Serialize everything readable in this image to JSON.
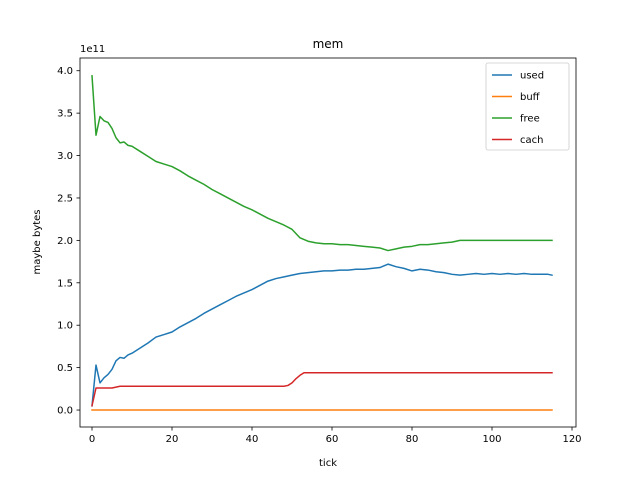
{
  "chart_data": {
    "type": "line",
    "title": "mem",
    "xlabel": "tick",
    "ylabel": "maybe bytes",
    "offset_label": "1e11",
    "xlim": [
      -3,
      121
    ],
    "ylim": [
      -0.2,
      4.15
    ],
    "xticks": [
      0,
      20,
      40,
      60,
      80,
      100,
      120
    ],
    "yticks": [
      0.0,
      0.5,
      1.0,
      1.5,
      2.0,
      2.5,
      3.0,
      3.5,
      4.0
    ],
    "xtick_labels": [
      "0",
      "20",
      "40",
      "60",
      "80",
      "100",
      "120"
    ],
    "ytick_labels": [
      "0.0",
      "0.5",
      "1.0",
      "1.5",
      "2.0",
      "2.5",
      "3.0",
      "3.5",
      "4.0"
    ],
    "legend_position": "top-right",
    "grid": false,
    "series": [
      {
        "name": "used",
        "color": "#1f77b4",
        "x": [
          0,
          1,
          2,
          3,
          4,
          5,
          6,
          7,
          8,
          9,
          10,
          12,
          14,
          16,
          18,
          20,
          22,
          24,
          26,
          28,
          30,
          32,
          34,
          36,
          38,
          40,
          42,
          44,
          46,
          48,
          50,
          52,
          54,
          56,
          58,
          60,
          62,
          64,
          66,
          68,
          70,
          72,
          74,
          76,
          78,
          80,
          82,
          84,
          86,
          88,
          90,
          92,
          94,
          96,
          98,
          100,
          102,
          104,
          106,
          108,
          110,
          112,
          114,
          115
        ],
        "values": [
          0.05,
          0.53,
          0.32,
          0.38,
          0.42,
          0.48,
          0.58,
          0.62,
          0.61,
          0.65,
          0.67,
          0.73,
          0.79,
          0.86,
          0.89,
          0.92,
          0.98,
          1.03,
          1.08,
          1.14,
          1.19,
          1.24,
          1.29,
          1.34,
          1.38,
          1.42,
          1.47,
          1.52,
          1.55,
          1.57,
          1.59,
          1.61,
          1.62,
          1.63,
          1.64,
          1.64,
          1.65,
          1.65,
          1.66,
          1.66,
          1.67,
          1.68,
          1.72,
          1.69,
          1.67,
          1.64,
          1.66,
          1.65,
          1.63,
          1.62,
          1.6,
          1.59,
          1.6,
          1.61,
          1.6,
          1.61,
          1.6,
          1.61,
          1.6,
          1.61,
          1.6,
          1.6,
          1.6,
          1.59
        ]
      },
      {
        "name": "buff",
        "color": "#ff7f0e",
        "x": [
          0,
          115
        ],
        "values": [
          0.0,
          0.0
        ]
      },
      {
        "name": "free",
        "color": "#2ca02c",
        "x": [
          0,
          1,
          2,
          3,
          4,
          5,
          6,
          7,
          8,
          9,
          10,
          12,
          14,
          16,
          18,
          20,
          22,
          24,
          26,
          28,
          30,
          32,
          34,
          36,
          38,
          40,
          42,
          44,
          46,
          48,
          50,
          52,
          54,
          56,
          58,
          60,
          62,
          64,
          66,
          68,
          70,
          72,
          74,
          76,
          78,
          80,
          82,
          84,
          86,
          88,
          90,
          92,
          94,
          96,
          98,
          100,
          102,
          104,
          106,
          108,
          110,
          112,
          114,
          115
        ],
        "values": [
          3.94,
          3.24,
          3.46,
          3.41,
          3.39,
          3.32,
          3.21,
          3.15,
          3.16,
          3.12,
          3.11,
          3.05,
          2.99,
          2.93,
          2.9,
          2.87,
          2.82,
          2.76,
          2.71,
          2.66,
          2.6,
          2.55,
          2.5,
          2.45,
          2.4,
          2.36,
          2.31,
          2.26,
          2.22,
          2.18,
          2.13,
          2.03,
          1.99,
          1.97,
          1.96,
          1.96,
          1.95,
          1.95,
          1.94,
          1.93,
          1.92,
          1.91,
          1.88,
          1.9,
          1.92,
          1.93,
          1.95,
          1.95,
          1.96,
          1.97,
          1.98,
          2.0,
          2.0,
          2.0,
          2.0,
          2.0,
          2.0,
          2.0,
          2.0,
          2.0,
          2.0,
          2.0,
          2.0,
          2.0
        ]
      },
      {
        "name": "cach",
        "color": "#d62728",
        "x": [
          0,
          1,
          2,
          3,
          4,
          5,
          6,
          7,
          8,
          10,
          20,
          30,
          40,
          45,
          48,
          49,
          50,
          51,
          52,
          53,
          54,
          60,
          70,
          80,
          90,
          100,
          110,
          115
        ],
        "values": [
          0.05,
          0.26,
          0.26,
          0.26,
          0.26,
          0.26,
          0.27,
          0.28,
          0.28,
          0.28,
          0.28,
          0.28,
          0.28,
          0.28,
          0.28,
          0.29,
          0.32,
          0.37,
          0.41,
          0.44,
          0.44,
          0.44,
          0.44,
          0.44,
          0.44,
          0.44,
          0.44,
          0.44
        ]
      }
    ]
  }
}
